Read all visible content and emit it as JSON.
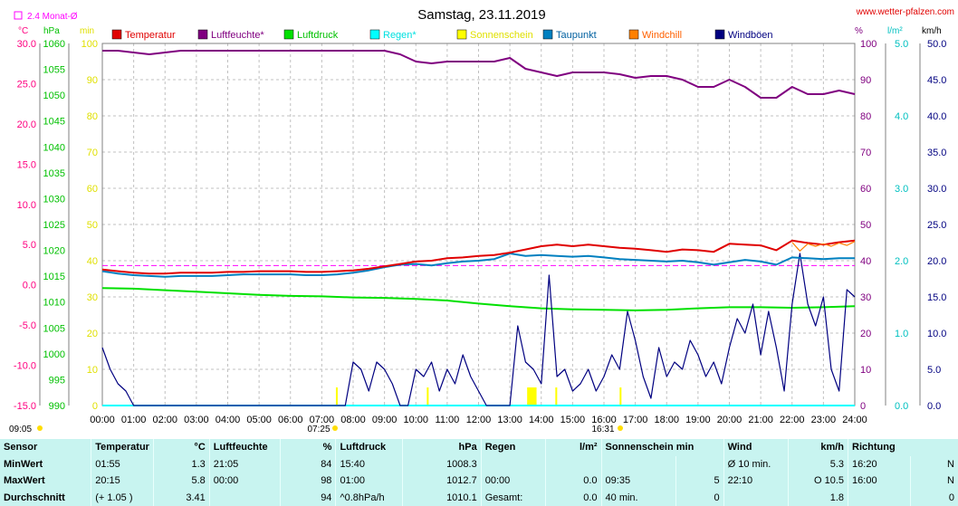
{
  "chart_data": {
    "type": "line",
    "title": "Samstag, 23.11.2019",
    "site": "www.wetter-pfalzen.com",
    "x_ticks": [
      "00:00",
      "01:00",
      "02:00",
      "03:00",
      "04:00",
      "05:00",
      "06:00",
      "07:00",
      "08:00",
      "09:00",
      "10:00",
      "11:00",
      "12:00",
      "13:00",
      "14:00",
      "15:00",
      "16:00",
      "17:00",
      "18:00",
      "19:00",
      "20:00",
      "21:00",
      "22:00",
      "23:00",
      "24:00"
    ],
    "sunrise": "07:25",
    "sunset": "16:31",
    "sun_start": "09:05",
    "monthly_avg_label": "2.4 Monat-Ø",
    "monthly_avg_temp": 2.4,
    "axes": {
      "temperature": {
        "unit": "°C",
        "range": [
          -15,
          30
        ],
        "ticks": [
          "30.0",
          "25.0",
          "20.0",
          "15.0",
          "10.0",
          "5.0",
          "0.0",
          "-5.0",
          "-10.0",
          "-15.0"
        ]
      },
      "pressure": {
        "unit": "hPa",
        "range": [
          990,
          1060
        ],
        "ticks": [
          "1060",
          "1055",
          "1050",
          "1045",
          "1040",
          "1035",
          "1030",
          "1025",
          "1020",
          "1015",
          "1010",
          "1005",
          "1000",
          "995",
          "990"
        ]
      },
      "minutes": {
        "unit": "min",
        "range": [
          0,
          100
        ],
        "ticks": [
          "100",
          "90",
          "80",
          "70",
          "60",
          "50",
          "40",
          "30",
          "20",
          "10",
          "0"
        ]
      },
      "humidity": {
        "unit": "%",
        "range": [
          0,
          100
        ],
        "ticks": [
          "100",
          "90",
          "80",
          "70",
          "60",
          "50",
          "40",
          "30",
          "20",
          "10",
          "0"
        ]
      },
      "rain": {
        "unit": "l/m²",
        "range": [
          0,
          5
        ],
        "ticks": [
          "5.0",
          "4.0",
          "3.0",
          "2.0",
          "1.0",
          "0.0"
        ]
      },
      "wind": {
        "unit": "km/h",
        "range": [
          0,
          50
        ],
        "ticks": [
          "50.0",
          "45.0",
          "40.0",
          "35.0",
          "30.0",
          "25.0",
          "20.0",
          "15.0",
          "10.0",
          "5.0",
          "0.0"
        ]
      }
    },
    "legend": [
      {
        "name": "Temperatur",
        "color": "#e00000",
        "text_color": "#e00000"
      },
      {
        "name": "Luftfeuchte*",
        "color": "#800080",
        "text_color": "#800080"
      },
      {
        "name": "Luftdruck",
        "color": "#00e000",
        "text_color": "#00c000"
      },
      {
        "name": "Regen*",
        "color": "#00ffff",
        "text_color": "#00e0e0"
      },
      {
        "name": "Sonnenschein",
        "color": "#ffff00",
        "text_color": "#e0e000"
      },
      {
        "name": "Taupunkt",
        "color": "#0080c0",
        "text_color": "#0060a0"
      },
      {
        "name": "Windchill",
        "color": "#ff8000",
        "text_color": "#ff6000"
      },
      {
        "name": "Windböen",
        "color": "#000080",
        "text_color": "#000080"
      }
    ],
    "series": [
      {
        "name": "Temperatur",
        "axis": "temperature",
        "color": "#e00000",
        "x": [
          0,
          0.5,
          1,
          1.5,
          2,
          2.5,
          3,
          3.5,
          4,
          4.5,
          5,
          5.5,
          6,
          6.5,
          7,
          7.5,
          8,
          8.5,
          9,
          9.5,
          10,
          10.5,
          11,
          11.5,
          12,
          12.5,
          13,
          13.5,
          14,
          14.5,
          15,
          15.5,
          16,
          16.5,
          17,
          17.5,
          18,
          18.5,
          19,
          19.5,
          20,
          20.5,
          21,
          21.5,
          22,
          22.5,
          23,
          23.5,
          24
        ],
        "y": [
          1.9,
          1.7,
          1.5,
          1.4,
          1.4,
          1.5,
          1.5,
          1.5,
          1.6,
          1.6,
          1.7,
          1.7,
          1.7,
          1.6,
          1.6,
          1.7,
          1.8,
          2.0,
          2.3,
          2.6,
          2.9,
          3.0,
          3.3,
          3.4,
          3.6,
          3.7,
          4.0,
          4.4,
          4.8,
          5.0,
          4.8,
          5.0,
          4.8,
          4.6,
          4.5,
          4.3,
          4.1,
          4.4,
          4.3,
          4.1,
          5.1,
          5.0,
          4.9,
          4.3,
          5.5,
          5.2,
          5.0,
          5.3,
          5.5
        ]
      },
      {
        "name": "Luftfeuchte*",
        "axis": "humidity",
        "color": "#800080",
        "x": [
          0,
          0.5,
          1,
          1.5,
          2,
          2.5,
          3,
          3.5,
          4,
          4.5,
          5,
          5.5,
          6,
          6.5,
          7,
          7.5,
          8,
          8.5,
          9,
          9.5,
          10,
          10.5,
          11,
          11.5,
          12,
          12.5,
          13,
          13.5,
          14,
          14.5,
          15,
          15.5,
          16,
          16.5,
          17,
          17.5,
          18,
          18.5,
          19,
          19.5,
          20,
          20.5,
          21,
          21.5,
          22,
          22.5,
          23,
          23.5,
          24
        ],
        "y": [
          98,
          98,
          97.5,
          97,
          97.5,
          98,
          98,
          98,
          98,
          98,
          98,
          98,
          98,
          98,
          98,
          98,
          98,
          98,
          98,
          97,
          95,
          94.5,
          95,
          95,
          95,
          95,
          96,
          93,
          92,
          91,
          92,
          92,
          92,
          91.5,
          90.5,
          91,
          91,
          90,
          88,
          88,
          90,
          88,
          85,
          85,
          88,
          86,
          86,
          87,
          86
        ]
      },
      {
        "name": "Luftdruck",
        "axis": "pressure",
        "color": "#00e000",
        "x": [
          0,
          1,
          2,
          3,
          4,
          5,
          6,
          7,
          8,
          9,
          10,
          11,
          12,
          13,
          14,
          15,
          16,
          17,
          18,
          19,
          20,
          21,
          22,
          23,
          24
        ],
        "y": [
          1012.7,
          1012.6,
          1012.3,
          1012.0,
          1011.7,
          1011.4,
          1011.2,
          1011.1,
          1010.9,
          1010.8,
          1010.6,
          1010.3,
          1009.7,
          1009.2,
          1008.8,
          1008.6,
          1008.5,
          1008.4,
          1008.5,
          1008.8,
          1009.0,
          1009.0,
          1008.9,
          1009.0,
          1009.2
        ]
      },
      {
        "name": "Regen*",
        "axis": "rain",
        "color": "#00ffff",
        "x": [
          0,
          24
        ],
        "y": [
          0.0,
          0.0
        ]
      },
      {
        "name": "Taupunkt",
        "axis": "temperature",
        "color": "#0080c0",
        "x": [
          0,
          0.5,
          1,
          1.5,
          2,
          2.5,
          3,
          3.5,
          4,
          4.5,
          5,
          5.5,
          6,
          6.5,
          7,
          7.5,
          8,
          8.5,
          9,
          9.5,
          10,
          10.5,
          11,
          11.5,
          12,
          12.5,
          13,
          13.5,
          14,
          14.5,
          15,
          15.5,
          16,
          16.5,
          17,
          17.5,
          18,
          18.5,
          19,
          19.5,
          20,
          20.5,
          21,
          21.5,
          22,
          22.5,
          23,
          23.5,
          24
        ],
        "y": [
          1.7,
          1.4,
          1.2,
          1.1,
          1.0,
          1.1,
          1.1,
          1.1,
          1.2,
          1.3,
          1.3,
          1.3,
          1.3,
          1.2,
          1.2,
          1.3,
          1.5,
          1.8,
          2.2,
          2.5,
          2.6,
          2.4,
          2.7,
          2.9,
          3.0,
          3.2,
          3.9,
          3.6,
          3.7,
          3.6,
          3.5,
          3.6,
          3.4,
          3.2,
          3.1,
          3.0,
          2.9,
          3.0,
          2.8,
          2.5,
          2.8,
          3.1,
          2.9,
          2.5,
          3.4,
          3.3,
          3.2,
          3.3,
          3.3
        ]
      },
      {
        "name": "Windchill",
        "axis": "temperature",
        "color": "#ff8000",
        "x": [
          22,
          22.25,
          22.5,
          22.75,
          23,
          23.25,
          23.5,
          23.75,
          24
        ],
        "y": [
          5.3,
          4.2,
          5.1,
          4.8,
          5.1,
          4.8,
          5.2,
          4.9,
          5.4
        ]
      },
      {
        "name": "Windböen",
        "axis": "wind",
        "color": "#000080",
        "x": [
          0,
          0.25,
          0.5,
          0.75,
          1,
          1.25,
          1.5,
          2,
          3,
          4,
          5,
          6,
          7,
          7.75,
          8,
          8.25,
          8.5,
          8.75,
          9,
          9.25,
          9.5,
          9.75,
          10,
          10.25,
          10.5,
          10.75,
          11,
          11.25,
          11.5,
          11.75,
          12,
          12.25,
          12.5,
          12.75,
          13,
          13.25,
          13.5,
          13.75,
          14,
          14.25,
          14.5,
          14.75,
          15,
          15.25,
          15.5,
          15.75,
          16,
          16.25,
          16.5,
          16.75,
          17,
          17.25,
          17.5,
          17.75,
          18,
          18.25,
          18.5,
          18.75,
          19,
          19.25,
          19.5,
          19.75,
          20,
          20.25,
          20.5,
          20.75,
          21,
          21.25,
          21.5,
          21.75,
          22,
          22.25,
          22.5,
          22.75,
          23,
          23.25,
          23.5,
          23.75,
          24
        ],
        "y": [
          8,
          5,
          3,
          2,
          0,
          0,
          0,
          0,
          0,
          0,
          0,
          0,
          0,
          0,
          6,
          5,
          2,
          6,
          5,
          3,
          0,
          0,
          5,
          4,
          6,
          2,
          5,
          3,
          7,
          4,
          2,
          0,
          0,
          0,
          0,
          11,
          6,
          5,
          3,
          18,
          4,
          5,
          2,
          3,
          5,
          2,
          4,
          7,
          5,
          13,
          9,
          4,
          1,
          8,
          4,
          6,
          5,
          9,
          7,
          4,
          6,
          3,
          8,
          12,
          10,
          14,
          7,
          13,
          8,
          2,
          14,
          21,
          14,
          11,
          15,
          5,
          2,
          16,
          15
        ]
      }
    ],
    "sunshine_bars": [
      {
        "from": 7.45,
        "to": 7.5
      },
      {
        "from": 10.35,
        "to": 10.4
      },
      {
        "from": 13.55,
        "to": 13.85
      },
      {
        "from": 14.45,
        "to": 14.5
      },
      {
        "from": 16.5,
        "to": 16.55
      }
    ],
    "reference_line_temp": 2.4,
    "grid": true
  },
  "stats": {
    "headers": {
      "sensor": "Sensor",
      "temp": "Temperatur",
      "temp_unit": "°C",
      "hum": "Luftfeuchte",
      "hum_unit": "%",
      "press": "Luftdruck",
      "press_unit": "hPa",
      "rain": "Regen",
      "rain_unit": "l/m²",
      "sun": "Sonnenschein min",
      "wind": "Wind",
      "wind_unit": "km/h",
      "dir": "Richtung"
    },
    "rows": [
      {
        "label": "MinWert",
        "temp_time": "01:55",
        "temp_val": "1.3",
        "hum_time": "21:05",
        "hum_val": "84",
        "press_time": "15:40",
        "press_val": "1008.3",
        "rain_time": "",
        "rain_val": "",
        "sun_time": "",
        "sun_val": "",
        "wind_time": "Ø 10 min.",
        "wind_val": "5.3",
        "dir_time": "16:20",
        "dir_val": "N"
      },
      {
        "label": "MaxWert",
        "temp_time": "20:15",
        "temp_val": "5.8",
        "hum_time": "00:00",
        "hum_val": "98",
        "press_time": "01:00",
        "press_val": "1012.7",
        "rain_time": "00:00",
        "rain_val": "0.0",
        "sun_time": "09:35",
        "sun_val": "5",
        "wind_time": "22:10",
        "wind_val": "O 10.5",
        "dir_time": "16:00",
        "dir_val": "N"
      },
      {
        "label": "Durchschnitt",
        "temp_time": "(+ 1.05 )",
        "temp_val": "3.41",
        "hum_time": "",
        "hum_val": "94",
        "press_time": "^0.8hPa/h",
        "press_val": "1010.1",
        "rain_time": "Gesamt:",
        "rain_val": "0.0",
        "sun_time": "40 min.",
        "sun_val": "0",
        "wind_time": "",
        "wind_val": "1.8",
        "dir_time": "",
        "dir_val": "0"
      }
    ]
  }
}
